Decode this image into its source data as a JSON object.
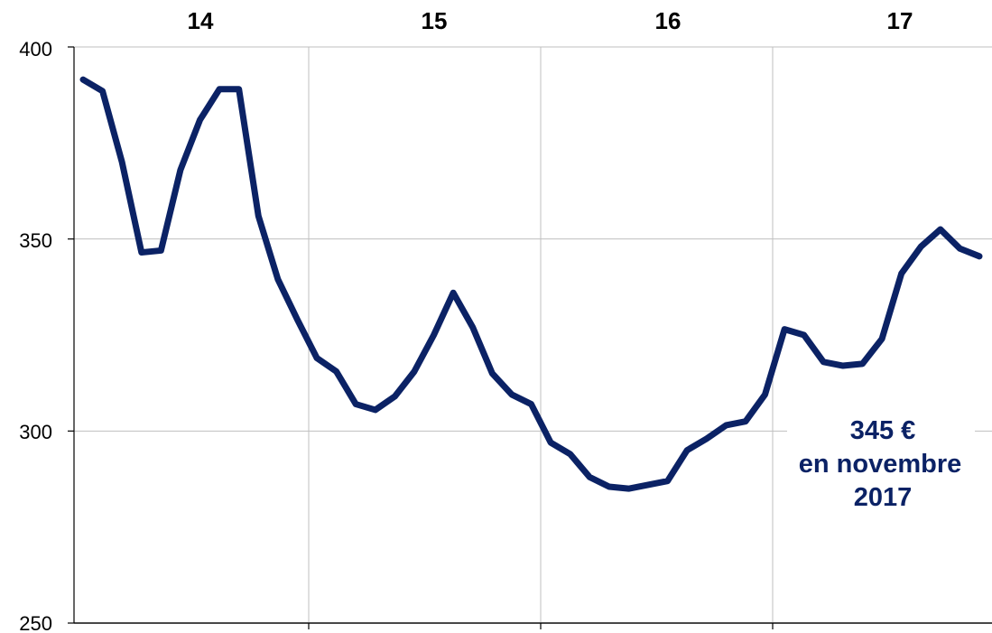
{
  "chart_data": {
    "type": "line",
    "title": "",
    "xlabel": "",
    "ylabel": "",
    "ylim": [
      250,
      400
    ],
    "y_ticks": [
      "250",
      "300",
      "350",
      "400"
    ],
    "year_labels": [
      "14",
      "15",
      "16",
      "17"
    ],
    "grid": "vertical and horizontal gridlines",
    "series": [
      {
        "values": [
          391.5,
          388.5,
          370,
          346.5,
          347,
          368,
          381,
          389,
          389,
          356,
          339.5,
          329,
          319,
          315.5,
          307,
          305.5,
          309,
          315.5,
          325,
          336,
          327,
          315,
          309.5,
          307,
          297,
          294,
          288,
          285.5,
          285,
          286,
          287,
          295,
          298,
          301.5,
          302.5,
          309.5,
          326.5,
          325,
          318,
          317,
          317.5,
          324,
          341,
          348,
          352.5,
          347.5,
          345.5
        ]
      }
    ],
    "annotation": {
      "line1": "345 €",
      "line2": "en novembre",
      "line3": "2017"
    }
  },
  "colors": {
    "series": "#0b2265",
    "grid": "#bfbfbf",
    "axis": "#000000",
    "annotation": "#0b2265"
  }
}
